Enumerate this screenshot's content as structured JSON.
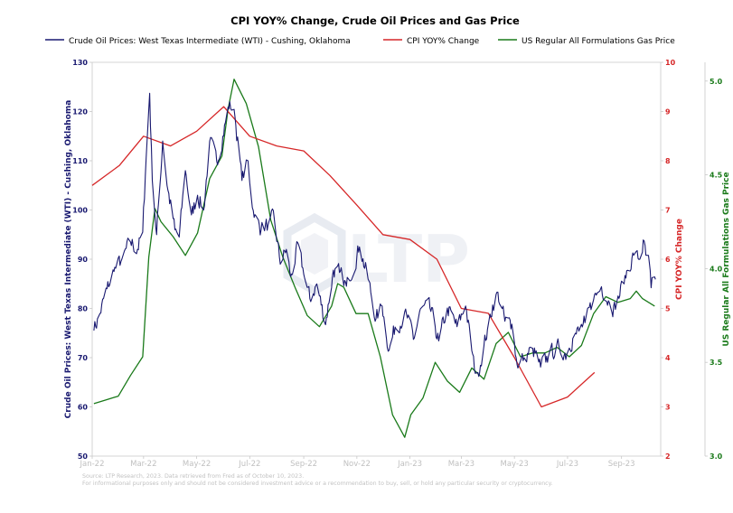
{
  "chart_data": {
    "type": "line",
    "title": "CPI YOY% Change, Crude Oil Prices and Gas Price",
    "legend_position": "top",
    "grid": false,
    "watermark": "LTP",
    "source_note_1": "Source: LTP Research, 2023. Data retrieved from Fred as of October 10, 2023.",
    "source_note_2": "For informational purposes only and should not be considered investment advice or a recommendation to buy, sell, or hold any particular security or cryptocurrency.",
    "x_tick_labels": [
      "Jan-22",
      "Mar-22",
      "May-22",
      "Jul-22",
      "Sep-22",
      "Nov-22",
      "Jan-23",
      "Mar-23",
      "May-23",
      "Jul-23",
      "Sep-23"
    ],
    "xlim": [
      "2022-01-01",
      "2023-10-16"
    ],
    "axes": {
      "left": {
        "label": "Crude Oil Prices: West Texas Intermediate (WTI) - Cushing, Oklahoma",
        "ylim": [
          50,
          130
        ],
        "ticks": [
          50,
          60,
          70,
          80,
          90,
          100,
          110,
          120,
          130
        ],
        "color": "#191970"
      },
      "right1": {
        "label": "CPI YOY% Change",
        "ylim": [
          2,
          10
        ],
        "ticks": [
          2,
          3,
          4,
          5,
          6,
          7,
          8,
          9,
          10
        ],
        "color": "#d62728"
      },
      "right2": {
        "label": "US Regular All Formulations Gas Price",
        "ylim": [
          3.0,
          5.1
        ],
        "ticks": [
          3.0,
          3.5,
          4.0,
          4.5,
          5.0
        ],
        "color": "#1a7a1a"
      }
    },
    "series": [
      {
        "name": "Crude Oil Prices: West Texas Intermediate (WTI) - Cushing, Oklahoma",
        "axis": "left",
        "color": "#191970",
        "daily": true,
        "anchors": [
          [
            "2022-01-03",
            75.5
          ],
          [
            "2022-01-10",
            79
          ],
          [
            "2022-01-18",
            84
          ],
          [
            "2022-01-26",
            87.5
          ],
          [
            "2022-02-04",
            90
          ],
          [
            "2022-02-14",
            93.5
          ],
          [
            "2022-02-22",
            92
          ],
          [
            "2022-02-28",
            95.5
          ],
          [
            "2022-03-03",
            107
          ],
          [
            "2022-03-08",
            123.7
          ],
          [
            "2022-03-11",
            106
          ],
          [
            "2022-03-16",
            95
          ],
          [
            "2022-03-23",
            114
          ],
          [
            "2022-03-29",
            104
          ],
          [
            "2022-04-06",
            96
          ],
          [
            "2022-04-11",
            94.5
          ],
          [
            "2022-04-18",
            108
          ],
          [
            "2022-04-25",
            99
          ],
          [
            "2022-05-02",
            103
          ],
          [
            "2022-05-09",
            100
          ],
          [
            "2022-05-16",
            114
          ],
          [
            "2022-05-24",
            110
          ],
          [
            "2022-05-31",
            115
          ],
          [
            "2022-06-08",
            122
          ],
          [
            "2022-06-14",
            118.9
          ],
          [
            "2022-06-22",
            106
          ],
          [
            "2022-06-29",
            110
          ],
          [
            "2022-07-06",
            98.5
          ],
          [
            "2022-07-14",
            96
          ],
          [
            "2022-07-22",
            97
          ],
          [
            "2022-07-29",
            98.5
          ],
          [
            "2022-08-05",
            89
          ],
          [
            "2022-08-12",
            92
          ],
          [
            "2022-08-17",
            86.5
          ],
          [
            "2022-08-26",
            93
          ],
          [
            "2022-09-01",
            86.9
          ],
          [
            "2022-09-08",
            82
          ],
          [
            "2022-09-16",
            85
          ],
          [
            "2022-09-26",
            76.7
          ],
          [
            "2022-10-05",
            87.8
          ],
          [
            "2022-10-12",
            87.3
          ],
          [
            "2022-10-20",
            84.5
          ],
          [
            "2022-11-04",
            92.5
          ],
          [
            "2022-11-14",
            85.9
          ],
          [
            "2022-11-23",
            77.9
          ],
          [
            "2022-11-30",
            80.5
          ],
          [
            "2022-12-08",
            71.5
          ],
          [
            "2022-12-15",
            76.2
          ],
          [
            "2022-12-28",
            78.9
          ],
          [
            "2023-01-05",
            73.7
          ],
          [
            "2023-01-13",
            79.9
          ],
          [
            "2023-01-24",
            80.1
          ],
          [
            "2023-02-03",
            73.4
          ],
          [
            "2023-02-13",
            80.1
          ],
          [
            "2023-02-24",
            76.3
          ],
          [
            "2023-03-06",
            80.5
          ],
          [
            "2023-03-16",
            67.6
          ],
          [
            "2023-03-20",
            67
          ],
          [
            "2023-03-31",
            75.7
          ],
          [
            "2023-04-06",
            80.7
          ],
          [
            "2023-04-12",
            83.3
          ],
          [
            "2023-04-20",
            77.4
          ],
          [
            "2023-04-28",
            76.8
          ],
          [
            "2023-05-04",
            68.6
          ],
          [
            "2023-05-12",
            70
          ],
          [
            "2023-05-22",
            71.9
          ],
          [
            "2023-05-31",
            68.1
          ],
          [
            "2023-06-09",
            70.2
          ],
          [
            "2023-06-21",
            72.5
          ],
          [
            "2023-06-30",
            70.6
          ],
          [
            "2023-07-07",
            73.9
          ],
          [
            "2023-07-14",
            75.4
          ],
          [
            "2023-07-21",
            77.1
          ],
          [
            "2023-07-31",
            81.8
          ],
          [
            "2023-08-09",
            84.4
          ],
          [
            "2023-08-18",
            81.2
          ],
          [
            "2023-08-25",
            79.8
          ],
          [
            "2023-09-05",
            86.7
          ],
          [
            "2023-09-15",
            90.8
          ],
          [
            "2023-09-22",
            90
          ],
          [
            "2023-09-27",
            93.7
          ],
          [
            "2023-09-29",
            90.8
          ],
          [
            "2023-10-03",
            89.2
          ],
          [
            "2023-10-05",
            84.2
          ],
          [
            "2023-10-09",
            86.4
          ],
          [
            "2023-10-10",
            85.9
          ]
        ]
      },
      {
        "name": "CPI YOY% Change",
        "axis": "right1",
        "color": "#d62728",
        "points": [
          [
            "2022-01-01",
            7.5
          ],
          [
            "2022-02-01",
            7.9
          ],
          [
            "2022-03-01",
            8.5
          ],
          [
            "2022-04-01",
            8.3
          ],
          [
            "2022-05-01",
            8.6
          ],
          [
            "2022-06-01",
            9.1
          ],
          [
            "2022-07-01",
            8.5
          ],
          [
            "2022-08-01",
            8.3
          ],
          [
            "2022-09-01",
            8.2
          ],
          [
            "2022-10-01",
            7.7
          ],
          [
            "2022-11-01",
            7.1
          ],
          [
            "2022-12-01",
            6.5
          ],
          [
            "2023-01-01",
            6.4
          ],
          [
            "2023-02-01",
            6.0
          ],
          [
            "2023-03-01",
            5.0
          ],
          [
            "2023-04-01",
            4.9
          ],
          [
            "2023-05-01",
            4.0
          ],
          [
            "2023-06-01",
            3.0
          ],
          [
            "2023-07-01",
            3.2
          ],
          [
            "2023-08-01",
            3.7
          ]
        ]
      },
      {
        "name": "US Regular All Formulations Gas Price",
        "axis": "right2",
        "color": "#1a7a1a",
        "points": [
          [
            "2022-01-03",
            3.28
          ],
          [
            "2022-01-17",
            3.3
          ],
          [
            "2022-01-31",
            3.32
          ],
          [
            "2022-02-14",
            3.43
          ],
          [
            "2022-02-28",
            3.53
          ],
          [
            "2022-03-07",
            4.06
          ],
          [
            "2022-03-14",
            4.32
          ],
          [
            "2022-03-21",
            4.25
          ],
          [
            "2022-04-04",
            4.17
          ],
          [
            "2022-04-18",
            4.07
          ],
          [
            "2022-05-02",
            4.19
          ],
          [
            "2022-05-16",
            4.48
          ],
          [
            "2022-05-30",
            4.6
          ],
          [
            "2022-06-06",
            4.85
          ],
          [
            "2022-06-13",
            5.01
          ],
          [
            "2022-06-27",
            4.88
          ],
          [
            "2022-07-11",
            4.65
          ],
          [
            "2022-07-25",
            4.26
          ],
          [
            "2022-08-08",
            4.06
          ],
          [
            "2022-08-22",
            3.9
          ],
          [
            "2022-09-05",
            3.75
          ],
          [
            "2022-09-19",
            3.69
          ],
          [
            "2022-10-03",
            3.8
          ],
          [
            "2022-10-10",
            3.92
          ],
          [
            "2022-10-17",
            3.9
          ],
          [
            "2022-10-31",
            3.76
          ],
          [
            "2022-11-14",
            3.76
          ],
          [
            "2022-11-28",
            3.53
          ],
          [
            "2022-12-12",
            3.22
          ],
          [
            "2022-12-26",
            3.1
          ],
          [
            "2023-01-02",
            3.22
          ],
          [
            "2023-01-16",
            3.31
          ],
          [
            "2023-01-30",
            3.5
          ],
          [
            "2023-02-13",
            3.4
          ],
          [
            "2023-02-27",
            3.34
          ],
          [
            "2023-03-13",
            3.47
          ],
          [
            "2023-03-27",
            3.41
          ],
          [
            "2023-04-10",
            3.6
          ],
          [
            "2023-04-24",
            3.66
          ],
          [
            "2023-05-08",
            3.53
          ],
          [
            "2023-05-22",
            3.55
          ],
          [
            "2023-06-05",
            3.55
          ],
          [
            "2023-06-19",
            3.58
          ],
          [
            "2023-07-03",
            3.53
          ],
          [
            "2023-07-17",
            3.59
          ],
          [
            "2023-07-31",
            3.76
          ],
          [
            "2023-08-14",
            3.85
          ],
          [
            "2023-08-28",
            3.82
          ],
          [
            "2023-09-11",
            3.84
          ],
          [
            "2023-09-18",
            3.88
          ],
          [
            "2023-09-25",
            3.84
          ],
          [
            "2023-10-09",
            3.8
          ]
        ]
      }
    ]
  }
}
